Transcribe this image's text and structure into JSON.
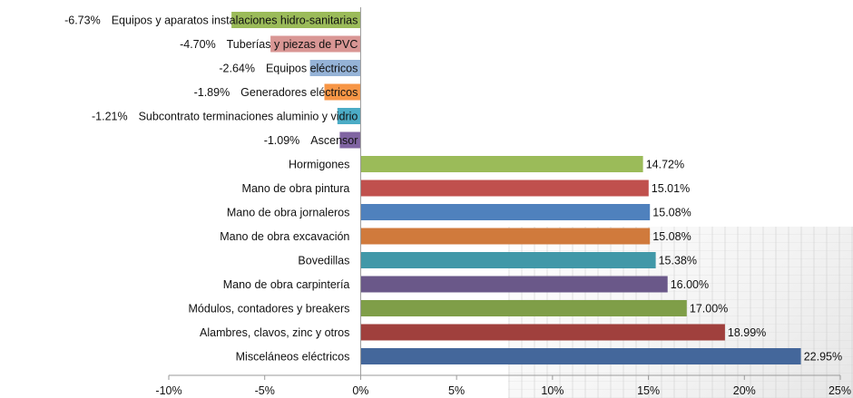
{
  "chart_data": {
    "type": "bar",
    "orientation": "horizontal",
    "categories": [
      "Equipos y aparatos instalaciones hidro-sanitarias",
      "Tuberías y piezas de PVC",
      "Equipos eléctricos",
      "Generadores eléctricos",
      "Subcontrato terminaciones aluminio y vidrio",
      "Ascensor",
      "Hormigones",
      "Mano de obra pintura",
      "Mano de obra jornaleros",
      "Mano de obra excavación",
      "Bovedillas",
      "Mano de obra carpintería",
      "Módulos, contadores y breakers",
      "Alambres, clavos, zinc y otros",
      "Misceláneos eléctricos"
    ],
    "values": [
      -6.73,
      -4.7,
      -2.64,
      -1.89,
      -1.21,
      -1.09,
      14.72,
      15.01,
      15.08,
      15.08,
      15.38,
      16.0,
      17.0,
      18.99,
      22.95
    ],
    "value_labels": [
      "-6.73%",
      "-4.70%",
      "-2.64%",
      "-1.89%",
      "-1.21%",
      "-1.09%",
      "14.72%",
      "15.01%",
      "15.08%",
      "15.08%",
      "15.38%",
      "16.00%",
      "17.00%",
      "18.99%",
      "22.95%"
    ],
    "colors": [
      "#9bbb59",
      "#d99694",
      "#95b3d7",
      "#f79646",
      "#4bacc6",
      "#8064a2",
      "#9bbb59",
      "#c0504d",
      "#4f81bd",
      "#d07a3c",
      "#4198a8",
      "#6a5889",
      "#7f9e48",
      "#a0403d",
      "#44679b"
    ],
    "xlim": [
      -10,
      25
    ],
    "xticks": [
      -10,
      -5,
      0,
      5,
      10,
      15,
      20,
      25
    ],
    "xtick_labels": [
      "-10%",
      "-5%",
      "0%",
      "5%",
      "10%",
      "15%",
      "20%",
      "25%"
    ],
    "title": "",
    "xlabel": "",
    "ylabel": "",
    "grid": false,
    "legend": "none"
  }
}
